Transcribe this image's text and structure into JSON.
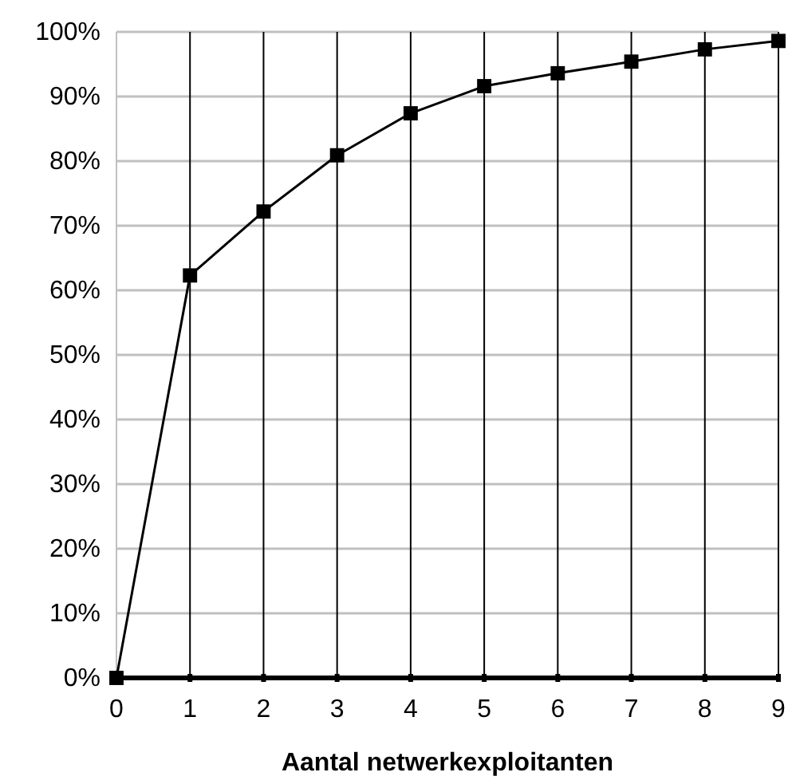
{
  "chart_data": {
    "type": "line",
    "xlabel": "Aantal netwerkexploitanten",
    "x": [
      0,
      1,
      2,
      3,
      4,
      5,
      6,
      7,
      8,
      9
    ],
    "series": [
      {
        "color": "#000000",
        "values": [
          0,
          62.3,
          72.2,
          80.9,
          87.4,
          91.6,
          93.6,
          95.4,
          97.3,
          98.6
        ]
      }
    ],
    "xlim": [
      0,
      9
    ],
    "xticks": [
      0,
      1,
      2,
      3,
      4,
      5,
      6,
      7,
      8,
      9
    ],
    "ylim": [
      0,
      100
    ],
    "yticks": [
      {
        "value": 0,
        "label": "0%"
      },
      {
        "value": 10,
        "label": "10%"
      },
      {
        "value": 20,
        "label": "20%"
      },
      {
        "value": 30,
        "label": "30%"
      },
      {
        "value": 40,
        "label": "40%"
      },
      {
        "value": 50,
        "label": "50%"
      },
      {
        "value": 60,
        "label": "60%"
      },
      {
        "value": 70,
        "label": "70%"
      },
      {
        "value": 80,
        "label": "80%"
      },
      {
        "value": 90,
        "label": "90%"
      },
      {
        "value": 100,
        "label": "100%"
      }
    ],
    "grid": true,
    "marker": "square",
    "line_style": "solid"
  }
}
